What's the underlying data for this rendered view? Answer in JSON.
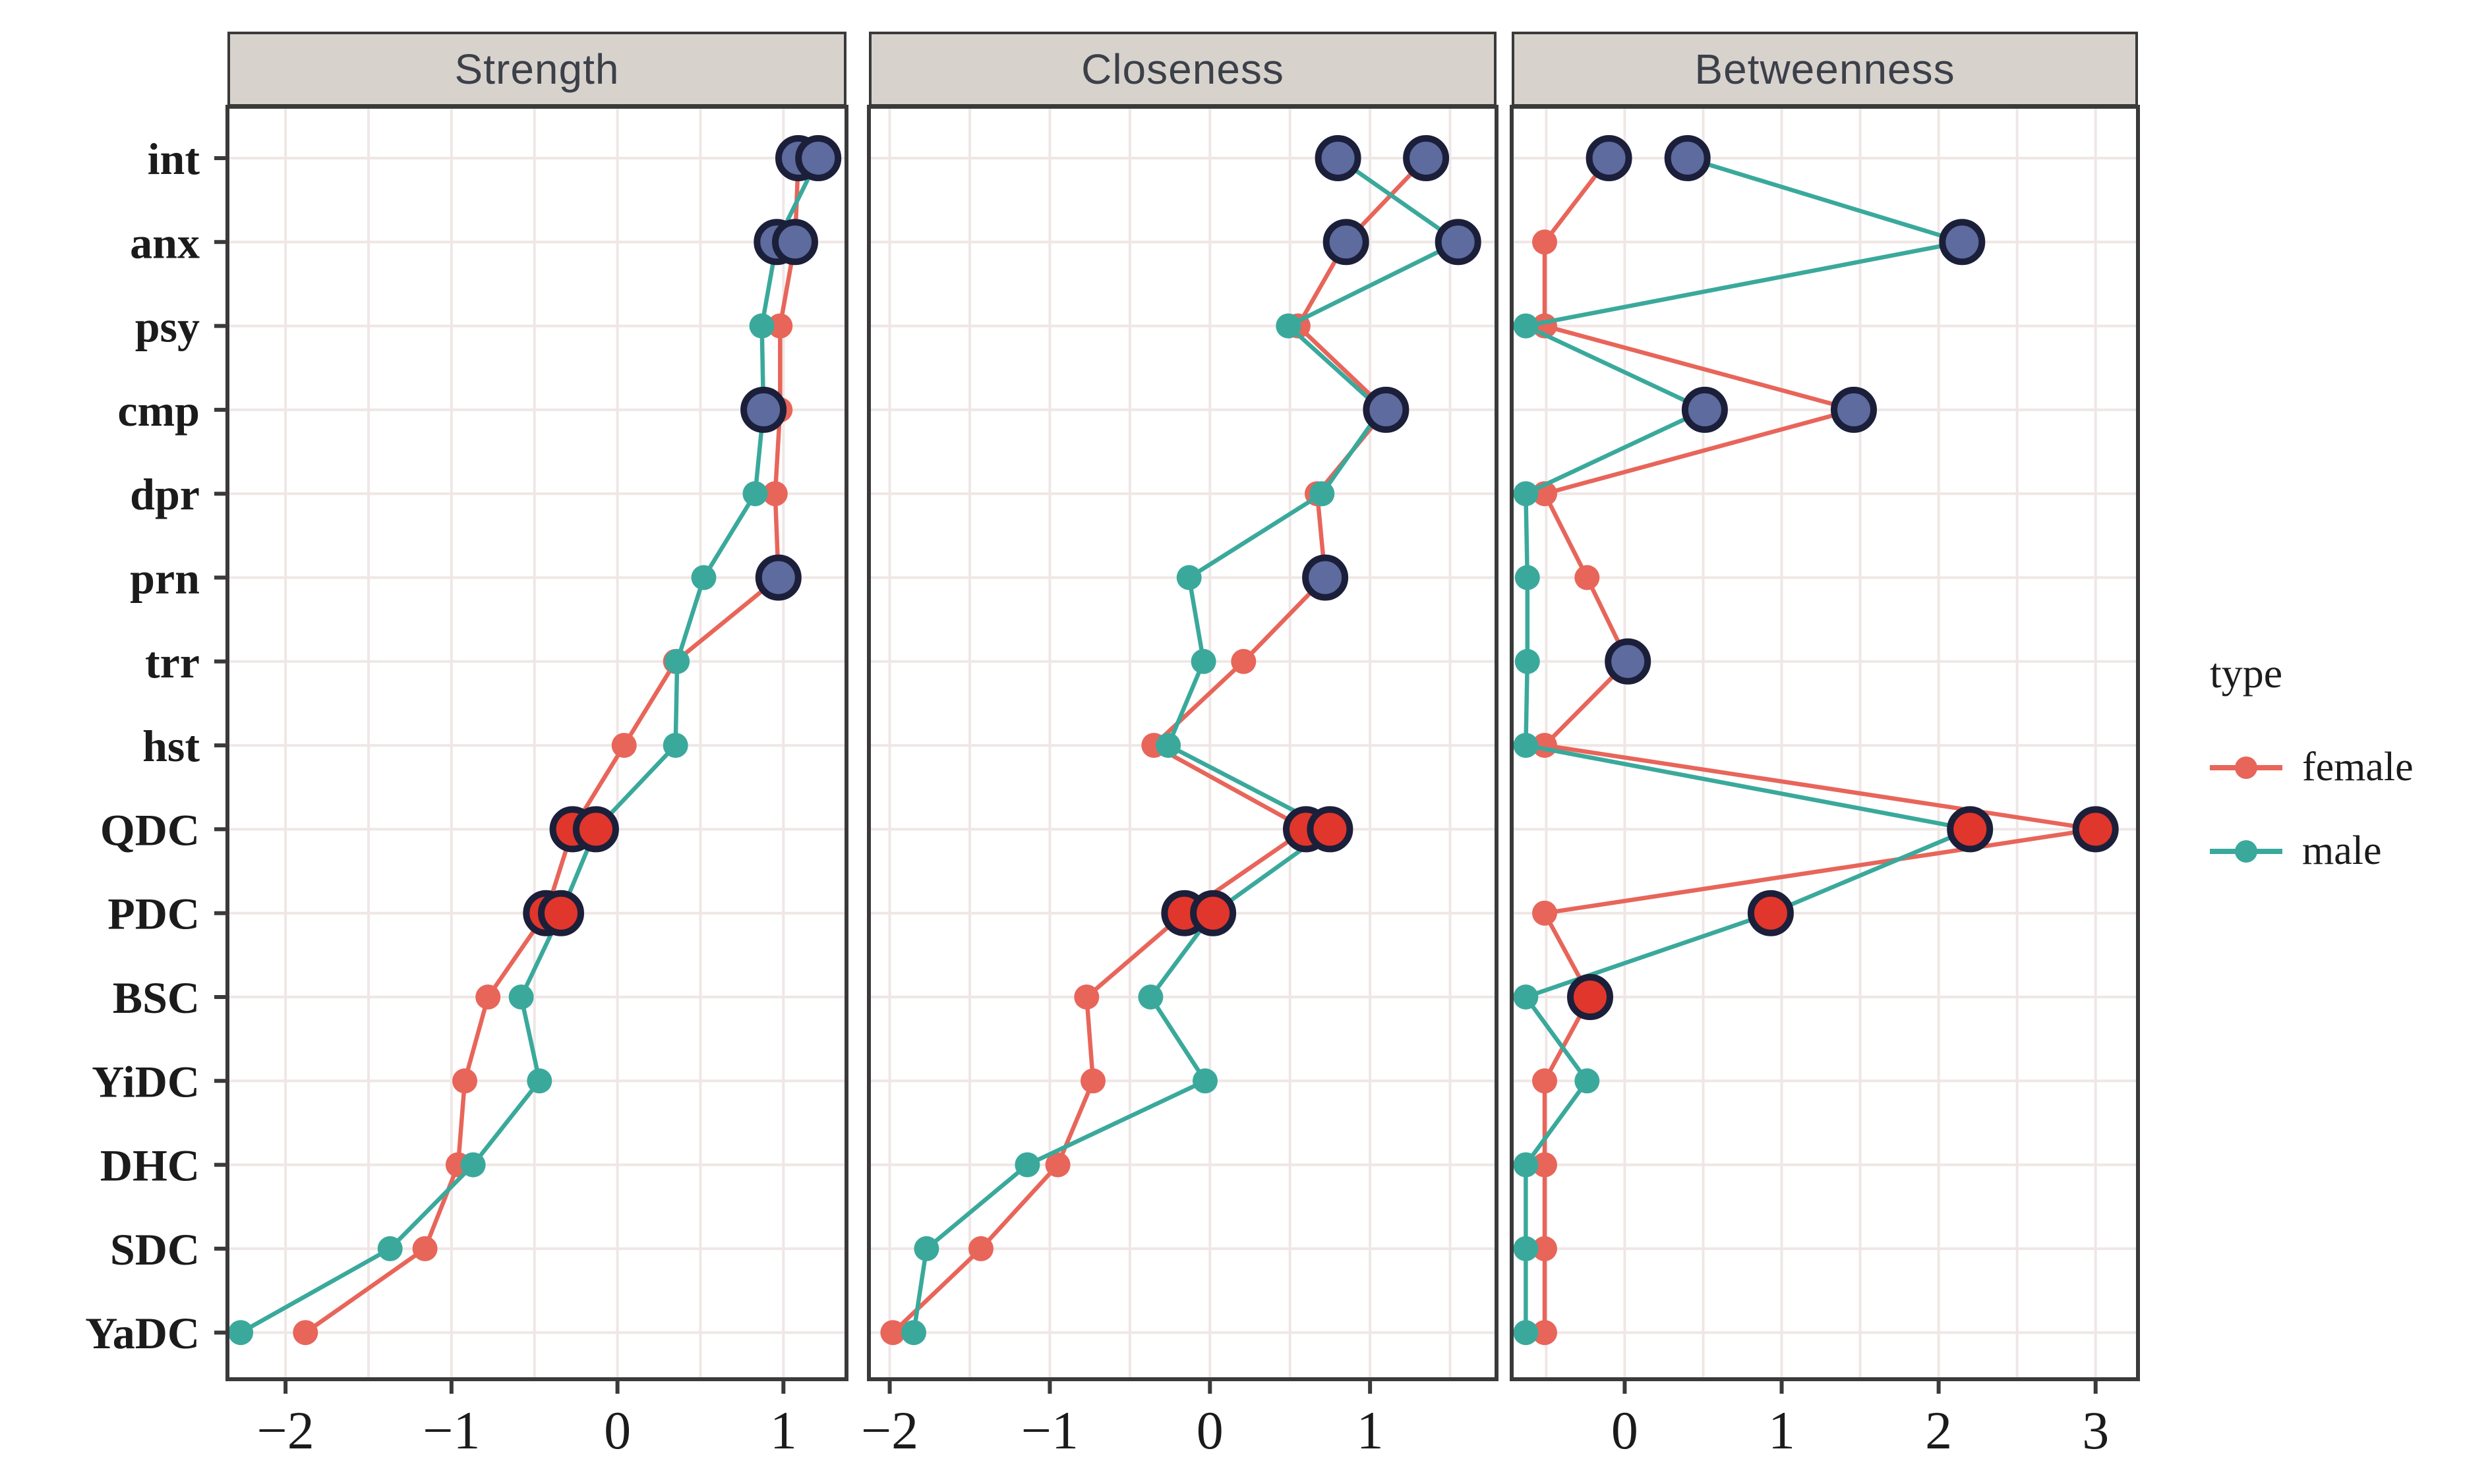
{
  "figure": {
    "kind": "faceted horizontal dot-line plot (network centrality indices by node and sex)",
    "background": "#ffffff"
  },
  "legend": {
    "title": "type",
    "items": [
      {
        "label": "female",
        "color": "#e8655a"
      },
      {
        "label": "male",
        "color": "#3aa99c"
      }
    ]
  },
  "colors": {
    "female_line": "#e8655a",
    "male_line": "#3aa99c",
    "big_navy_fill": "#5d6b9e",
    "big_red_fill": "#e1362b",
    "big_circle_stroke": "#1c1f3a",
    "grid": "#efe7e5",
    "panel_border": "#3a3a3a",
    "header_bg": "#d8d2cd",
    "text": "#1b1b1b"
  },
  "chart_data": {
    "type": "line",
    "orientation": "horizontal",
    "note": "three facets share the category y-axis; big outlined circles mark highlighted nodes",
    "categories": [
      "int",
      "anx",
      "psy",
      "cmp",
      "dpr",
      "prn",
      "trr",
      "hst",
      "QDC",
      "PDC",
      "BSC",
      "YiDC",
      "DHC",
      "SDC",
      "YaDC"
    ],
    "legend_position": "right",
    "grid": true,
    "panels": [
      {
        "title": "Strength",
        "xlim": [
          -2.35,
          1.38
        ],
        "ticks": [
          -2,
          -1,
          0,
          1
        ],
        "series": [
          {
            "name": "female",
            "values": [
              1.09,
              1.07,
              0.98,
              0.98,
              0.95,
              0.97,
              0.35,
              0.04,
              -0.27,
              -0.43,
              -0.78,
              -0.92,
              -0.96,
              -1.16,
              -1.88
            ]
          },
          {
            "name": "male",
            "values": [
              1.21,
              0.96,
              0.87,
              0.88,
              0.83,
              0.52,
              0.36,
              0.35,
              -0.13,
              -0.34,
              -0.58,
              -0.47,
              -0.87,
              -1.37,
              -2.27
            ]
          }
        ],
        "highlights": [
          {
            "category": "int",
            "series": "female",
            "fill": "navy"
          },
          {
            "category": "int",
            "series": "male",
            "fill": "navy"
          },
          {
            "category": "anx",
            "series": "male",
            "fill": "navy"
          },
          {
            "category": "anx",
            "series": "female",
            "fill": "navy"
          },
          {
            "category": "cmp",
            "series": "male",
            "fill": "navy"
          },
          {
            "category": "prn",
            "series": "female",
            "fill": "navy"
          },
          {
            "category": "QDC",
            "series": "female",
            "fill": "red"
          },
          {
            "category": "QDC",
            "series": "male",
            "fill": "red"
          },
          {
            "category": "PDC",
            "series": "female",
            "fill": "red"
          },
          {
            "category": "PDC",
            "series": "male",
            "fill": "red"
          }
        ]
      },
      {
        "title": "Closeness",
        "xlim": [
          -2.13,
          1.79
        ],
        "ticks": [
          -2,
          -1,
          0,
          1
        ],
        "series": [
          {
            "name": "female",
            "values": [
              1.35,
              0.85,
              0.55,
              1.1,
              0.67,
              0.72,
              0.21,
              -0.35,
              0.6,
              -0.16,
              -0.77,
              -0.73,
              -0.95,
              -1.43,
              -1.98
            ]
          },
          {
            "name": "male",
            "values": [
              0.8,
              1.55,
              0.49,
              1.07,
              0.7,
              -0.13,
              -0.04,
              -0.26,
              0.75,
              0.02,
              -0.37,
              -0.03,
              -1.14,
              -1.77,
              -1.85
            ]
          }
        ],
        "highlights": [
          {
            "category": "int",
            "series": "male",
            "fill": "navy"
          },
          {
            "category": "int",
            "series": "female",
            "fill": "navy"
          },
          {
            "category": "anx",
            "series": "female",
            "fill": "navy"
          },
          {
            "category": "anx",
            "series": "male",
            "fill": "navy"
          },
          {
            "category": "cmp",
            "series": "female",
            "fill": "navy"
          },
          {
            "category": "prn",
            "series": "female",
            "fill": "navy"
          },
          {
            "category": "QDC",
            "series": "female",
            "fill": "red"
          },
          {
            "category": "QDC",
            "series": "male",
            "fill": "red"
          },
          {
            "category": "PDC",
            "series": "female",
            "fill": "red"
          },
          {
            "category": "PDC",
            "series": "male",
            "fill": "red"
          }
        ]
      },
      {
        "title": "Betweenness",
        "xlim": [
          -0.72,
          3.27
        ],
        "ticks": [
          0,
          1,
          2,
          3
        ],
        "series": [
          {
            "name": "female",
            "values": [
              -0.1,
              -0.51,
              -0.51,
              1.46,
              -0.51,
              -0.24,
              0.02,
              -0.51,
              3.0,
              -0.51,
              -0.22,
              -0.51,
              -0.51,
              -0.51,
              -0.51
            ]
          },
          {
            "name": "male",
            "values": [
              0.4,
              2.15,
              -0.63,
              0.51,
              -0.63,
              -0.62,
              -0.62,
              -0.63,
              2.2,
              0.93,
              -0.63,
              -0.24,
              -0.63,
              -0.63,
              -0.63
            ]
          }
        ],
        "highlights": [
          {
            "category": "int",
            "series": "female",
            "fill": "navy"
          },
          {
            "category": "int",
            "series": "male",
            "fill": "navy"
          },
          {
            "category": "anx",
            "series": "male",
            "fill": "navy"
          },
          {
            "category": "cmp",
            "series": "male",
            "fill": "navy"
          },
          {
            "category": "cmp",
            "series": "female",
            "fill": "navy"
          },
          {
            "category": "trr",
            "series": "female",
            "fill": "navy"
          },
          {
            "category": "QDC",
            "series": "male",
            "fill": "red"
          },
          {
            "category": "QDC",
            "series": "female",
            "fill": "red"
          },
          {
            "category": "PDC",
            "series": "male",
            "fill": "red"
          },
          {
            "category": "BSC",
            "series": "female",
            "fill": "red"
          }
        ]
      }
    ]
  }
}
